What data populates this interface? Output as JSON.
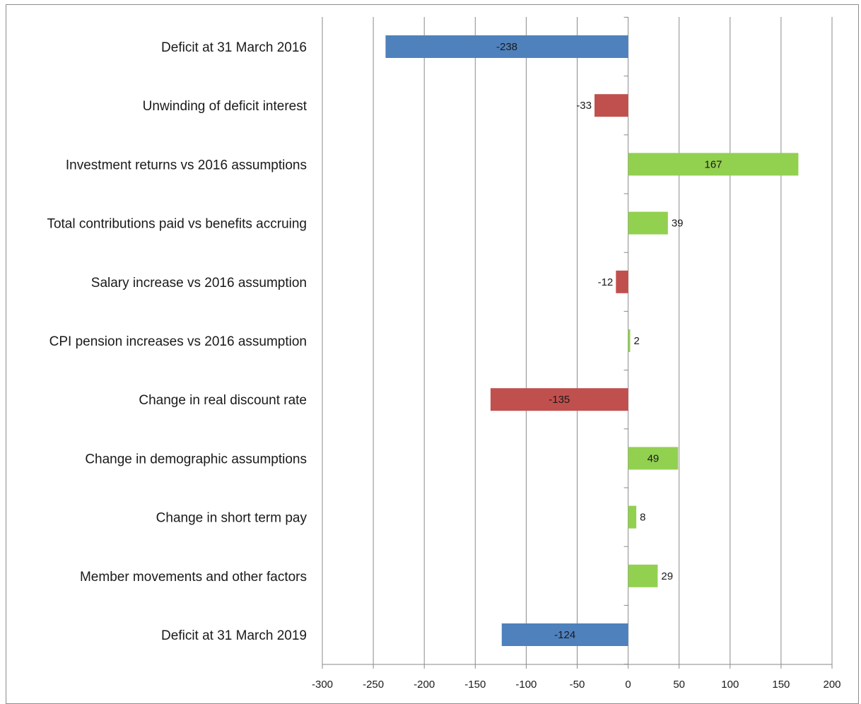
{
  "chart_data": {
    "type": "bar",
    "orientation": "horizontal",
    "title": "",
    "xlabel": "",
    "ylabel": "",
    "xlim": [
      -300,
      200
    ],
    "x_ticks": [
      -300,
      -250,
      -200,
      -150,
      -100,
      -50,
      0,
      50,
      100,
      150,
      200
    ],
    "grid": true,
    "legend": "none",
    "colors": {
      "total": "#4f81bd",
      "decrease": "#c0504d",
      "increase": "#92d050"
    },
    "categories": [
      "Deficit at 31 March 2016",
      "Unwinding of deficit interest",
      "Investment returns vs 2016 assumptions",
      "Total contributions paid vs benefits accruing",
      "Salary increase vs 2016 assumption",
      "CPI pension increases vs 2016 assumption",
      "Change in real discount rate",
      "Change in demographic assumptions",
      "Change in short term pay",
      "Member movements and other factors",
      "Deficit at 31 March 2019"
    ],
    "values": [
      -238,
      -33,
      167,
      39,
      -12,
      2,
      -135,
      49,
      8,
      29,
      -124
    ],
    "bar_kind": [
      "total",
      "decrease",
      "increase",
      "increase",
      "decrease",
      "increase",
      "decrease",
      "increase",
      "increase",
      "increase",
      "total"
    ],
    "data_labels": [
      "-238",
      "-33",
      "167",
      "39",
      "-12",
      "2",
      "-135",
      "49",
      "8",
      "29",
      "-124"
    ]
  }
}
